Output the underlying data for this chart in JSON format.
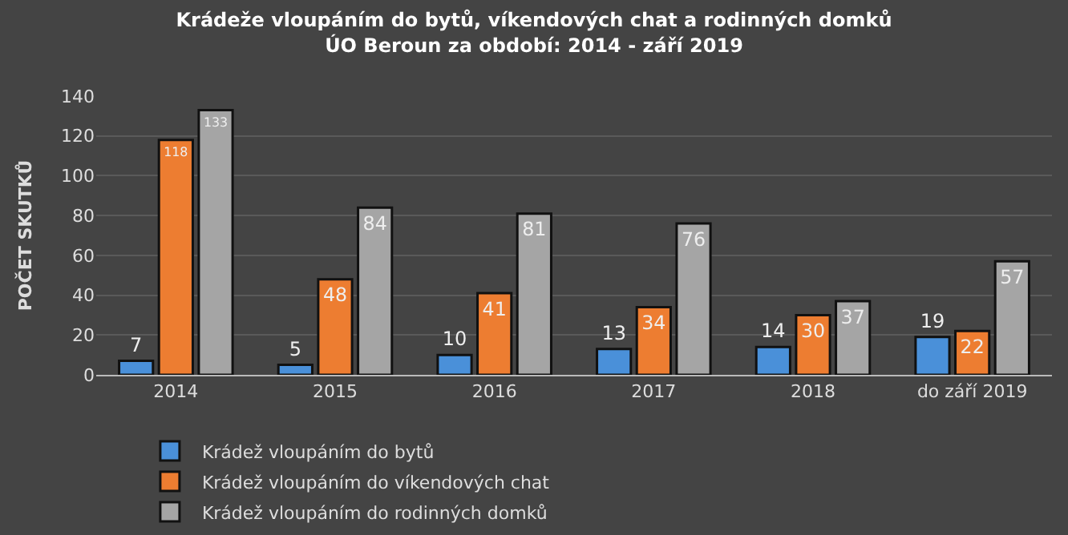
{
  "chart_data": {
    "type": "bar",
    "title": "Krádeže vloupáním do bytů, víkendových chat a rodinných domků\nÚO Beroun za období: 2014 - září 2019",
    "ylabel": "POČET SKUTKŮ",
    "categories": [
      "2014",
      "2015",
      "2016",
      "2017",
      "2018",
      "do září 2019"
    ],
    "series": [
      {
        "name": "Krádež vloupáním do bytů",
        "color": "#4a90d9",
        "values": [
          7,
          5,
          10,
          13,
          14,
          19
        ]
      },
      {
        "name": "Krádež vloupáním do víkendových chat",
        "color": "#ed7d31",
        "values": [
          118,
          48,
          41,
          34,
          30,
          22
        ]
      },
      {
        "name": "Krádež vloupáním do rodinných domků",
        "color": "#a5a5a5",
        "values": [
          133,
          84,
          81,
          76,
          37,
          57
        ]
      }
    ],
    "ylim": [
      0,
      140
    ],
    "yticks": [
      0,
      20,
      40,
      60,
      80,
      100,
      120,
      140
    ],
    "grid": "y",
    "legend": "bottom",
    "data_labels": true
  }
}
